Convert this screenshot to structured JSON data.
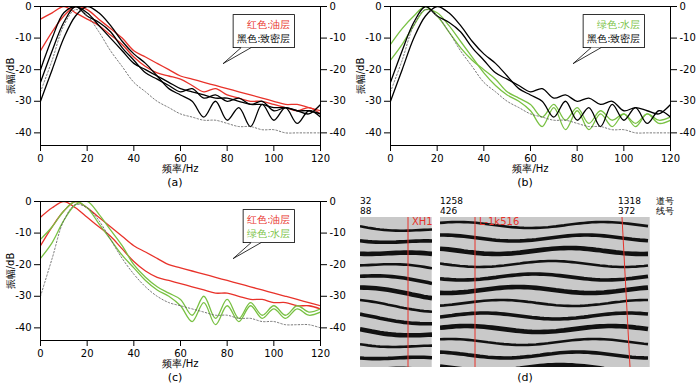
{
  "chart_data": [
    {
      "type": "line",
      "caption": "(a)",
      "x_label": "频率/Hz",
      "y_label": "振幅/dB",
      "x": [
        0,
        5,
        10,
        15,
        20,
        25,
        30,
        35,
        40,
        45,
        50,
        55,
        60,
        65,
        70,
        75,
        80,
        85,
        90,
        95,
        100,
        105,
        110,
        115,
        120
      ],
      "xlim": [
        0,
        120
      ],
      "xticks": [
        0,
        20,
        40,
        60,
        80,
        100,
        120
      ],
      "ylim": [
        -44,
        0
      ],
      "yticks": [
        0,
        -10,
        -20,
        -30,
        -40
      ],
      "y2lim": [
        -44,
        0
      ],
      "y2ticks": [
        0,
        -10,
        -20,
        -30,
        -40
      ],
      "legend": "top-right",
      "series": [
        {
          "name": "红色:油层",
          "color": "#e8322a",
          "values": [
            -14,
            -8,
            -3,
            0,
            -1,
            -4,
            -7,
            -10,
            -14,
            -16,
            -18,
            -20,
            -22,
            -23,
            -24,
            -25,
            -26,
            -27,
            -28,
            -29,
            -30,
            -31,
            -31,
            -32,
            -33
          ]
        },
        {
          "name": "红色:油层",
          "color": "#e8322a",
          "values": [
            -4,
            -2,
            0,
            -2,
            -4,
            -6,
            -9,
            -12,
            -16,
            -19,
            -21,
            -22,
            -23,
            -25,
            -27,
            -26,
            -28,
            -29,
            -30,
            -30,
            -31,
            -32,
            -33,
            -32,
            -34
          ]
        },
        {
          "name": "黑色:致密层",
          "color": "#000000",
          "values": [
            -30,
            -20,
            -10,
            -3,
            0,
            -2,
            -6,
            -11,
            -15,
            -18,
            -22,
            -26,
            -28,
            -30,
            -35,
            -30,
            -36,
            -32,
            -38,
            -31,
            -36,
            -32,
            -37,
            -33,
            -35
          ]
        },
        {
          "name": "黑色:致密层",
          "color": "#000000",
          "values": [
            -24,
            -14,
            -5,
            0,
            -3,
            -5,
            -8,
            -13,
            -17,
            -21,
            -23,
            -25,
            -27,
            -26,
            -29,
            -28,
            -30,
            -29,
            -31,
            -30,
            -33,
            -32,
            -33,
            -34,
            -31
          ]
        },
        {
          "name": "黑色:致密层",
          "color": "#000000",
          "values": [
            -20,
            -10,
            -2,
            0,
            -2,
            -6,
            -10,
            -14,
            -18,
            -20,
            -22,
            -24,
            -26,
            -27,
            -28,
            -29,
            -29,
            -30,
            -31,
            -31,
            -32,
            -32,
            -33,
            -33,
            -34
          ]
        },
        {
          "color": "#555555",
          "line_style": "dotted",
          "values": [
            -27,
            -17,
            -6,
            -1,
            -3,
            -8,
            -14,
            -19,
            -24,
            -27,
            -30,
            -32,
            -34,
            -35,
            -36,
            -36,
            -37,
            -38,
            -38,
            -39,
            -39,
            -40,
            -40,
            -40,
            -40
          ]
        }
      ]
    },
    {
      "type": "line",
      "caption": "(b)",
      "x_label": "频率/Hz",
      "y_label": "振幅/dB",
      "x": [
        0,
        5,
        10,
        15,
        20,
        25,
        30,
        35,
        40,
        45,
        50,
        55,
        60,
        65,
        70,
        75,
        80,
        85,
        90,
        95,
        100,
        105,
        110,
        115,
        120
      ],
      "xlim": [
        0,
        120
      ],
      "xticks": [
        0,
        20,
        40,
        60,
        80,
        100,
        120
      ],
      "ylim": [
        -44,
        0
      ],
      "yticks": [
        0,
        -10,
        -20,
        -30,
        -40
      ],
      "y2lim": [
        -44,
        0
      ],
      "y2ticks": [
        0,
        -10,
        -20,
        -30,
        -40
      ],
      "legend": "top-right",
      "series": [
        {
          "name": "绿色:水层",
          "color": "#79c143",
          "values": [
            -17,
            -12,
            -6,
            -1,
            -2,
            -6,
            -11,
            -16,
            -21,
            -25,
            -28,
            -30,
            -33,
            -38,
            -32,
            -39,
            -33,
            -39,
            -34,
            -38,
            -34,
            -38,
            -34,
            -37,
            -36
          ]
        },
        {
          "name": "绿色:水层",
          "color": "#79c143",
          "values": [
            -12,
            -7,
            -3,
            0,
            -3,
            -8,
            -13,
            -17,
            -20,
            -23,
            -27,
            -29,
            -31,
            -35,
            -31,
            -36,
            -32,
            -37,
            -33,
            -36,
            -34,
            -37,
            -34,
            -36,
            -35
          ]
        },
        {
          "name": "黑色:致密层",
          "color": "#000000",
          "values": [
            -30,
            -20,
            -10,
            -3,
            0,
            -2,
            -6,
            -11,
            -15,
            -18,
            -22,
            -26,
            -28,
            -30,
            -35,
            -30,
            -36,
            -32,
            -38,
            -31,
            -36,
            -32,
            -37,
            -33,
            -35
          ]
        },
        {
          "name": "黑色:致密层",
          "color": "#000000",
          "values": [
            -24,
            -14,
            -5,
            0,
            -3,
            -5,
            -8,
            -13,
            -17,
            -21,
            -23,
            -25,
            -27,
            -26,
            -29,
            -28,
            -30,
            -29,
            -31,
            -30,
            -33,
            -32,
            -33,
            -34,
            -31
          ]
        },
        {
          "color": "#555555",
          "line_style": "dotted",
          "values": [
            -27,
            -17,
            -6,
            -1,
            -3,
            -8,
            -14,
            -19,
            -24,
            -27,
            -30,
            -32,
            -34,
            -35,
            -36,
            -36,
            -37,
            -38,
            -38,
            -39,
            -39,
            -40,
            -40,
            -40,
            -40
          ]
        }
      ]
    },
    {
      "type": "line",
      "caption": "(c)",
      "x_label": "频率/Hz",
      "y_label": "振幅/dB",
      "x": [
        0,
        5,
        10,
        15,
        20,
        25,
        30,
        35,
        40,
        45,
        50,
        55,
        60,
        65,
        70,
        75,
        80,
        85,
        90,
        95,
        100,
        105,
        110,
        115,
        120
      ],
      "xlim": [
        0,
        120
      ],
      "xticks": [
        0,
        20,
        40,
        60,
        80,
        100,
        120
      ],
      "ylim": [
        -44,
        0
      ],
      "yticks": [
        0,
        -10,
        -20,
        -30,
        -40
      ],
      "y2lim": [
        -44,
        0
      ],
      "y2ticks": [
        0,
        -10,
        -20,
        -30,
        -40
      ],
      "legend": "top-right",
      "series": [
        {
          "name": "红色:油层",
          "color": "#e8322a",
          "values": [
            -14,
            -8,
            -3,
            0,
            -2,
            -5,
            -8,
            -11,
            -14,
            -16,
            -18,
            -20,
            -21,
            -22,
            -23,
            -24,
            -25,
            -26,
            -27,
            -28,
            -29,
            -30,
            -31,
            -32,
            -33
          ]
        },
        {
          "name": "红色:油层",
          "color": "#e8322a",
          "values": [
            -5,
            -2,
            0,
            -2,
            -5,
            -8,
            -11,
            -15,
            -19,
            -22,
            -24,
            -25,
            -26,
            -27,
            -28,
            -29,
            -29,
            -30,
            -31,
            -31,
            -32,
            -32,
            -33,
            -33,
            -34
          ]
        },
        {
          "name": "绿色:水层",
          "color": "#79c143",
          "values": [
            -18,
            -13,
            -6,
            -1,
            0,
            -4,
            -9,
            -14,
            -20,
            -24,
            -27,
            -29,
            -31,
            -36,
            -30,
            -37,
            -31,
            -37,
            -32,
            -36,
            -33,
            -36,
            -33,
            -35,
            -34
          ]
        },
        {
          "name": "绿色:水层",
          "color": "#79c143",
          "values": [
            -12,
            -8,
            -3,
            0,
            -2,
            -7,
            -12,
            -17,
            -21,
            -25,
            -28,
            -30,
            -33,
            -38,
            -32,
            -39,
            -33,
            -38,
            -33,
            -37,
            -34,
            -37,
            -34,
            -36,
            -35
          ]
        },
        {
          "color": "#555555",
          "line_style": "dotted",
          "values": [
            -30,
            -18,
            -6,
            -1,
            -2,
            -6,
            -12,
            -18,
            -23,
            -27,
            -30,
            -32,
            -33,
            -34,
            -35,
            -36,
            -36,
            -37,
            -37,
            -38,
            -38,
            -39,
            -39,
            -39,
            -40
          ]
        }
      ]
    },
    {
      "type": "seismic_section",
      "caption": "(d)",
      "column_labels": [
        {
          "trace": 32,
          "line": 88
        },
        {
          "trace": 1258,
          "line": 426
        },
        {
          "trace": 1318,
          "line": 372
        }
      ],
      "axis_labels": {
        "trace": "道号",
        "line": "线号"
      },
      "wells": [
        "XH1",
        "L-1k516"
      ]
    }
  ]
}
